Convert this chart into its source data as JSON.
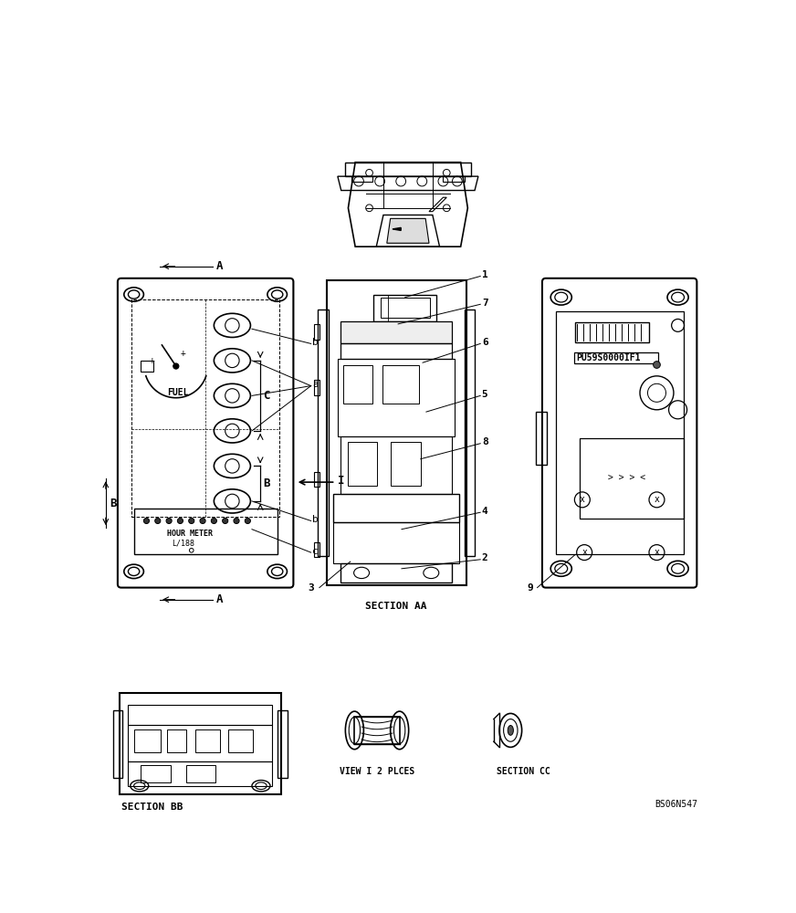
{
  "bg_color": "#ffffff",
  "line_color": "#000000",
  "figure_code": "BS06N547",
  "section_aa_label": "SECTION AA",
  "section_bb_label": "SECTION BB",
  "view_i_label": "VIEW I 2 PLCES",
  "section_cc_label": "SECTION CC",
  "label_a": "A",
  "label_b": "B",
  "label_i": "I",
  "part_numbers": [
    "1",
    "2",
    "3",
    "4",
    "5",
    "6",
    "7",
    "8",
    "9"
  ],
  "fuel_text": "FUEL",
  "hour_meter_line1": "HOUR METER",
  "hour_meter_line2": "L/188",
  "part_id_text": "PU59S0000IF1"
}
